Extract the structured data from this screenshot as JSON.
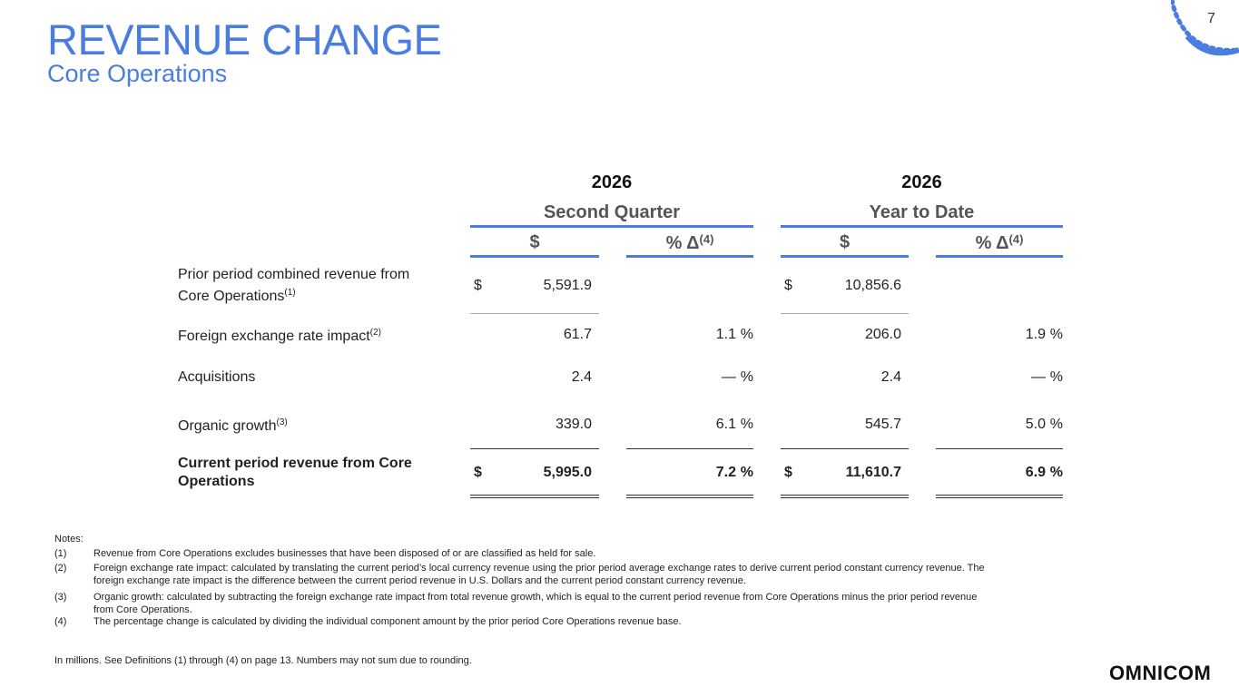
{
  "page_number": "7",
  "header": {
    "title": "REVENUE CHANGE",
    "subtitle": "Core Operations"
  },
  "table": {
    "periods": [
      {
        "year": "2026",
        "label": "Second Quarter"
      },
      {
        "year": "2026",
        "label": "Year to Date"
      }
    ],
    "column_headers": [
      {
        "text": "$"
      },
      {
        "text": "% Δ",
        "note": "(4)"
      },
      {
        "text": "$"
      },
      {
        "text": "% Δ",
        "note": "(4)"
      }
    ],
    "rows": [
      {
        "label": "Prior period combined revenue from Core Operations",
        "note": "(1)",
        "q": {
          "currency": "$",
          "amount": "5,591.9"
        },
        "ytd": {
          "currency": "$",
          "amount": "10,856.6"
        }
      },
      {
        "label": "Foreign exchange rate impact",
        "note": "(2)",
        "q": {
          "amount": "61.7",
          "pct": "1.1",
          "unit": "%"
        },
        "ytd": {
          "amount": "206.0",
          "pct": "1.9",
          "unit": "%"
        }
      },
      {
        "label": "Acquisitions",
        "q": {
          "amount": "2.4",
          "pct": "—",
          "unit": "%"
        },
        "ytd": {
          "amount": "2.4",
          "pct": "—",
          "unit": "%"
        }
      },
      {
        "label": "Organic growth",
        "note": "(3)",
        "q": {
          "amount": "339.0",
          "pct": "6.1",
          "unit": "%"
        },
        "ytd": {
          "amount": "545.7",
          "pct": "5.0",
          "unit": "%"
        }
      },
      {
        "label": "Current period revenue from Core Operations",
        "emphasis": true,
        "q": {
          "currency": "$",
          "amount": "5,995.0",
          "pct": "7.2",
          "unit": "%"
        },
        "ytd": {
          "currency": "$",
          "amount": "11,610.7",
          "pct": "6.9",
          "unit": "%"
        }
      }
    ]
  },
  "notes": {
    "heading": "Notes:",
    "items": [
      {
        "marker": "(1)",
        "text": "Revenue from Core Operations excludes businesses that have been disposed of or are classified as held for sale."
      },
      {
        "marker": "(2)",
        "text": "Foreign exchange rate impact: calculated by translating the current period’s local currency revenue using the prior period average exchange rates to derive current period constant currency revenue. The foreign exchange rate impact is the difference between the current period revenue in U.S. Dollars and the current period constant currency revenue."
      },
      {
        "marker": "(3)",
        "text": "Organic growth: calculated by subtracting the foreign exchange rate impact from total revenue growth, which is equal to the current period revenue from Core Operations minus the prior period revenue from Core Operations."
      },
      {
        "marker": "(4)",
        "text": "The percentage change is calculated by dividing the individual component amount by the prior period Core Operations revenue base."
      }
    ]
  },
  "footnote": "In millions. See Definitions (1) through (4) on page 13. Numbers may not sum due to rounding.",
  "logo": "OMNICOM"
}
